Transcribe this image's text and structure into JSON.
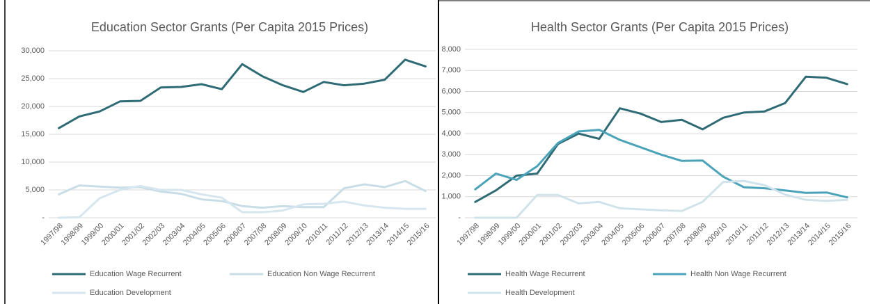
{
  "chart_data": [
    {
      "type": "line",
      "title": "Education Sector Grants (Per Capita 2015 Prices)",
      "categories": [
        "1997/98",
        "1998/99",
        "1999/00",
        "2000/01",
        "2001/02",
        "2002/03",
        "2003/04",
        "2004/05",
        "2005/06",
        "2006/07",
        "2007/08",
        "2008/09",
        "2009/10",
        "2010/11",
        "2011/12",
        "2012/13",
        "2013/14",
        "2014/15",
        "2015/16"
      ],
      "series": [
        {
          "name": "Education Wage Recurrent",
          "color": "#2f6b75",
          "values": [
            16100,
            18200,
            19100,
            20900,
            21000,
            23400,
            23500,
            24000,
            23100,
            27600,
            25400,
            23800,
            22600,
            24400,
            23800,
            24100,
            24800,
            28400,
            27200
          ]
        },
        {
          "name": "Education Non Wage Recurrent",
          "color": "#c9dde6",
          "values": [
            4200,
            5800,
            5600,
            5400,
            5500,
            4700,
            4300,
            3300,
            3000,
            2100,
            1800,
            2100,
            1900,
            1900,
            5300,
            6000,
            5500,
            6600,
            4800
          ]
        },
        {
          "name": "Education Development",
          "color": "#d6e6ee",
          "values": [
            0,
            100,
            3500,
            5000,
            5700,
            5000,
            5000,
            4200,
            3600,
            1000,
            1000,
            1300,
            2400,
            2500,
            2900,
            2200,
            1800,
            1600,
            1600
          ]
        }
      ],
      "ylim": [
        0,
        30000
      ],
      "yticks": [
        {
          "value": 0,
          "label": "-"
        },
        {
          "value": 5000,
          "label": "5,000"
        },
        {
          "value": 10000,
          "label": "10,000"
        },
        {
          "value": 15000,
          "label": "15,000"
        },
        {
          "value": 20000,
          "label": "20,000"
        },
        {
          "value": 25000,
          "label": "25,000"
        },
        {
          "value": 30000,
          "label": "30,000"
        }
      ],
      "grid": true
    },
    {
      "type": "line",
      "title": "Health Sector Grants (Per Capita 2015 Prices)",
      "categories": [
        "1997/98",
        "1998/99",
        "1999/00",
        "2000/01",
        "2001/02",
        "2002/03",
        "2003/04",
        "2004/05",
        "2005/06",
        "2006/07",
        "2007/08",
        "2008/09",
        "2009/10",
        "2010/11",
        "2011/12",
        "2012/13",
        "2013/14",
        "2014/15",
        "2015/16"
      ],
      "series": [
        {
          "name": "Health Wage Recurrent",
          "color": "#2f6b75",
          "values": [
            750,
            1300,
            2000,
            2100,
            3500,
            4000,
            3750,
            5200,
            4950,
            4550,
            4650,
            4200,
            4750,
            5000,
            5050,
            5450,
            6700,
            6650,
            6350
          ]
        },
        {
          "name": "Health Non Wage Recurrent",
          "color": "#4aa3b8",
          "values": [
            1350,
            2100,
            1800,
            2450,
            3550,
            4100,
            4180,
            3700,
            3350,
            3000,
            2700,
            2720,
            1950,
            1450,
            1400,
            1300,
            1180,
            1200,
            970
          ]
        },
        {
          "name": "Health Development",
          "color": "#d0e3ea",
          "values": [
            0,
            0,
            0,
            1080,
            1080,
            680,
            750,
            450,
            400,
            350,
            320,
            750,
            1700,
            1750,
            1550,
            1100,
            850,
            800,
            850
          ]
        }
      ],
      "ylim": [
        0,
        8000
      ],
      "yticks": [
        {
          "value": 0,
          "label": "-"
        },
        {
          "value": 1000,
          "label": "1,000"
        },
        {
          "value": 2000,
          "label": "2,000"
        },
        {
          "value": 3000,
          "label": "3,000"
        },
        {
          "value": 4000,
          "label": "4,000"
        },
        {
          "value": 5000,
          "label": "5,000"
        },
        {
          "value": 6000,
          "label": "6,000"
        },
        {
          "value": 7000,
          "label": "7,000"
        },
        {
          "value": 8000,
          "label": "8,000"
        }
      ],
      "grid": true
    }
  ]
}
